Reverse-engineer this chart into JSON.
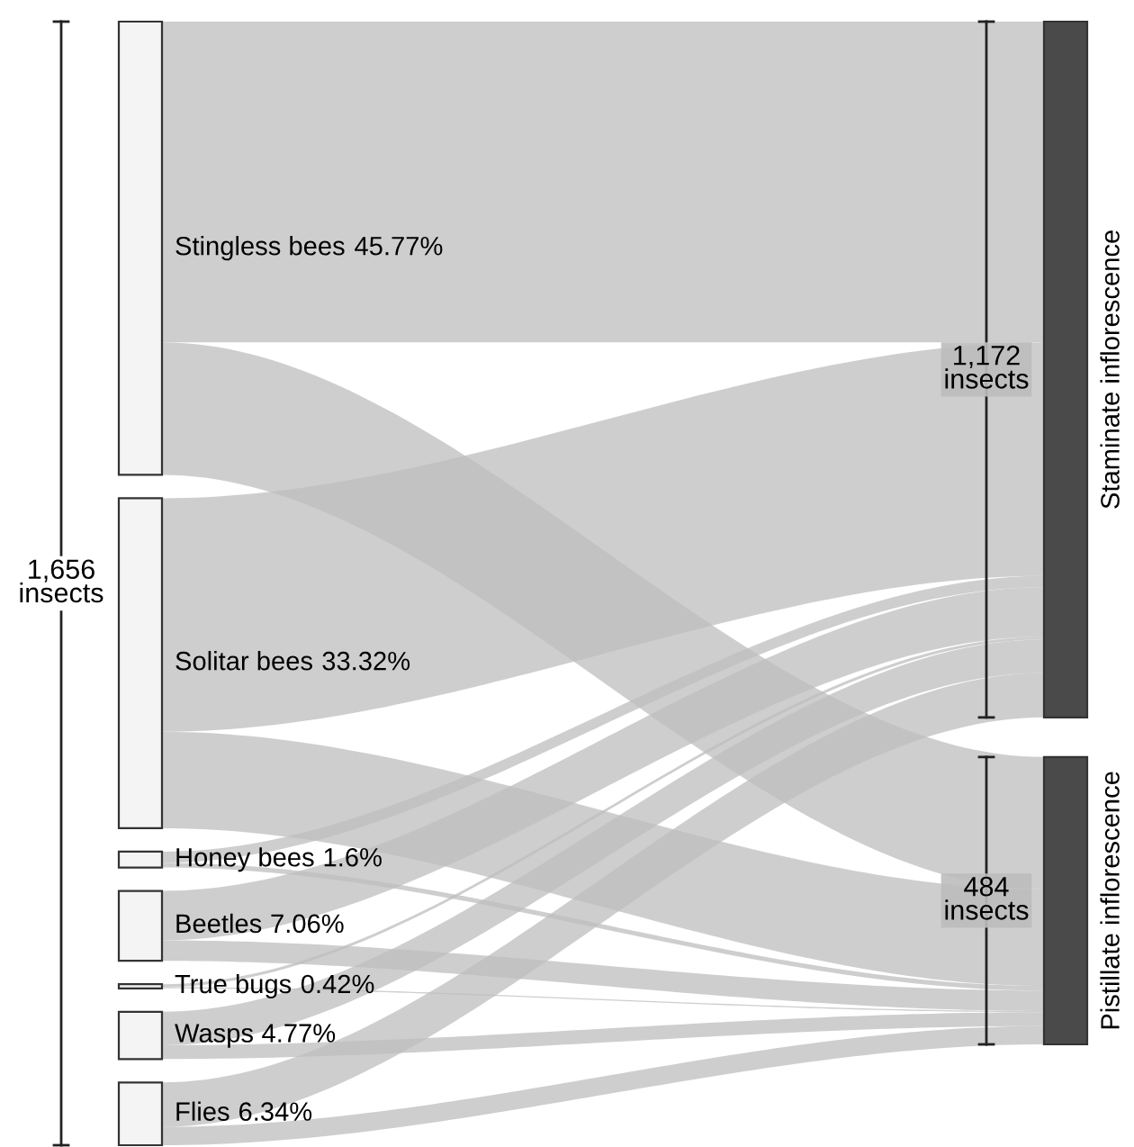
{
  "chart_data": [
    {
      "type": "other",
      "categories": [
        "Stingless bees",
        "Solitar bees",
        "Honey bees",
        "Beetles",
        "True bugs",
        "Wasps",
        "Flies"
      ],
      "values": [
        45.77,
        33.32,
        1.6,
        7.06,
        0.42,
        4.77,
        6.34
      ],
      "value_labels": [
        "45.77%",
        "33.32%",
        "1.6%",
        "7.06%",
        "0.42%",
        "4.77%",
        "6.34%"
      ],
      "annotations": [
        "1,656 insects"
      ]
    },
    {
      "type": "other",
      "categories": [
        "Staminate inflorescence",
        "Pistillate inflorescence"
      ],
      "values": [
        1172,
        484
      ],
      "value_labels": [
        "1,172 insects",
        "484 insects"
      ]
    }
  ]
}
